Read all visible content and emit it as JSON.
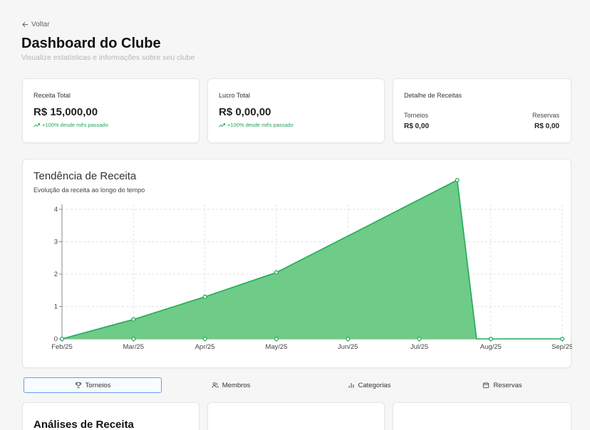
{
  "nav": {
    "back_label": "Voltar"
  },
  "header": {
    "title": "Dashboard do Clube",
    "subtitle": "Visualize estatísticas e informações sobre seu clube"
  },
  "stats": [
    {
      "label": "Receita Total",
      "value": "R$ 15,000,00",
      "change": "+100% desde mês passado"
    },
    {
      "label": "Lucro Total",
      "value": "R$ 0,00,00",
      "change": "+100% desde mês passado"
    }
  ],
  "detail": {
    "label": "Detalhe de Receitas",
    "left": {
      "label": "Torneios",
      "value": "R$ 0,00"
    },
    "right": {
      "label": "Reservas",
      "value": "R$ 0,00"
    }
  },
  "chart": {
    "title": "Tendência de Receita",
    "subtitle": "Evolução da receita ao longo do tempo"
  },
  "chart_data": {
    "type": "area",
    "title": "Tendência de Receita",
    "xlabel": "",
    "ylabel": "",
    "categories": [
      "Feb/25",
      "Mar/25",
      "Apr/25",
      "May/25",
      "Jun/25",
      "Jul/25",
      "Aug/25",
      "Sep/25"
    ],
    "ylim": [
      0,
      4
    ],
    "yticks": [
      0,
      1,
      2,
      3,
      4
    ],
    "grid": true,
    "points": [
      {
        "x": 0,
        "y": 0
      },
      {
        "x": 1,
        "y": 0.6
      },
      {
        "x": 2,
        "y": 1.3
      },
      {
        "x": 3,
        "y": 2.05
      },
      {
        "x": 5.53,
        "y": 4.9
      },
      {
        "x": 5.8,
        "y": 0
      },
      {
        "x": 6,
        "y": 0
      },
      {
        "x": 7,
        "y": 0
      }
    ],
    "baseline_markers": [
      0,
      1,
      2,
      3,
      4,
      5,
      6,
      7
    ],
    "colors": {
      "stroke": "#1faa59",
      "fill": "#6fcb88",
      "grid": "#d9d9d9"
    }
  },
  "tabs": [
    {
      "label": "Torneios",
      "icon": "trophy-icon",
      "active": true
    },
    {
      "label": "Membros",
      "icon": "users-icon",
      "active": false
    },
    {
      "label": "Categorias",
      "icon": "bar-chart-icon",
      "active": false
    },
    {
      "label": "Reservas",
      "icon": "calendar-icon",
      "active": false
    }
  ],
  "sections": {
    "revenue_title": "Análises de Receita"
  }
}
